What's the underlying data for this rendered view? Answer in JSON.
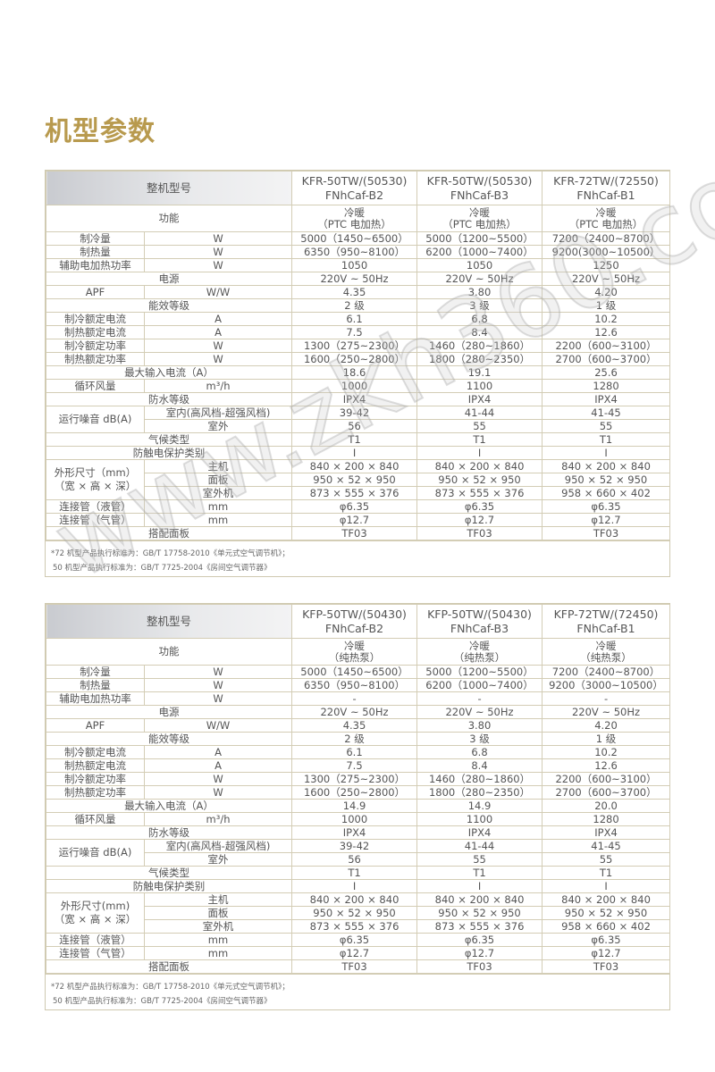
{
  "page_title": "机型参数",
  "watermark": "www.zkh360.com",
  "colors": {
    "title": "#b89a4e",
    "header_bg": "#c9cbd0",
    "border": "#d3cdb5"
  },
  "tables": [
    {
      "header_label": "整机型号",
      "models": [
        "KFR-50TW/(50530)|FNhCaf-B2",
        "KFR-50TW/(50530)|FNhCaf-B3",
        "KFR-72TW/(72550)|FNhCaf-B1"
      ],
      "function_label": "功能",
      "function_values": [
        "冷暖|（PTC 电加热）",
        "冷暖|（PTC 电加热）",
        "冷暖|（PTC 电加热）"
      ],
      "rows": [
        {
          "label": "制冷量",
          "unit": "W",
          "values": [
            "5000（1450~6500）",
            "5000（1200~5500）",
            "7200（2400~8700）"
          ]
        },
        {
          "label": "制热量",
          "unit": "W",
          "values": [
            "6350（950~8100）",
            "6200（1000~7400）",
            "9200(3000~10500）"
          ]
        },
        {
          "label": "辅助电加热功率",
          "unit": "W",
          "values": [
            "1050",
            "1050",
            "1250"
          ]
        },
        {
          "label": "电源",
          "values": [
            "220V ~ 50Hz",
            "220V ~ 50Hz",
            "220V ~ 50Hz"
          ]
        },
        {
          "label": "APF",
          "unit": "W/W",
          "values": [
            "4.35",
            "3.80",
            "4.20"
          ]
        },
        {
          "label": "能效等级",
          "values": [
            "2 级",
            "3 级",
            "1 级"
          ]
        },
        {
          "label": "制冷额定电流",
          "unit": "A",
          "values": [
            "6.1",
            "6.8",
            "10.2"
          ]
        },
        {
          "label": "制热额定电流",
          "unit": "A",
          "values": [
            "7.5",
            "8.4",
            "12.6"
          ]
        },
        {
          "label": "制冷额定功率",
          "unit": "W",
          "values": [
            "1300（275~2300）",
            "1460（280~1860）",
            "2200（600~3100）"
          ]
        },
        {
          "label": "制热额定功率",
          "unit": "W",
          "values": [
            "1600（250~2800）",
            "1800（280~2350）",
            "2700（600~3700）"
          ]
        },
        {
          "label": "最大输入电流（A）",
          "values": [
            "18.6",
            "19.1",
            "25.6"
          ]
        },
        {
          "label": "循环风量",
          "unit": "m³/h",
          "values": [
            "1000",
            "1100",
            "1280"
          ]
        },
        {
          "label": "防水等级",
          "values": [
            "IPX4",
            "IPX4",
            "IPX4"
          ]
        },
        {
          "group": "运行噪音 dB(A)",
          "rows": [
            {
              "label": "室内(高风档-超强风档)",
              "values": [
                "39-42",
                "41-44",
                "41-45"
              ]
            },
            {
              "label": "室外",
              "values": [
                "56",
                "55",
                "55"
              ]
            }
          ]
        },
        {
          "label": "气候类型",
          "values": [
            "T1",
            "T1",
            "T1"
          ]
        },
        {
          "label": "防触电保护类别",
          "values": [
            "I",
            "I",
            "I"
          ]
        },
        {
          "group": "外形尺寸（mm）|（宽 × 高 × 深）",
          "rows": [
            {
              "label": "主机",
              "values": [
                "840 × 200 × 840",
                "840 × 200 × 840",
                "840 × 200 × 840"
              ]
            },
            {
              "label": "面板",
              "values": [
                "950 × 52 × 950",
                "950 × 52 × 950",
                "950 × 52 × 950"
              ]
            },
            {
              "label": "室外机",
              "values": [
                "873 × 555 × 376",
                "873 × 555 × 376",
                "958 × 660 × 402"
              ]
            }
          ]
        },
        {
          "label": "连接管（液管）",
          "unit": "mm",
          "values": [
            "φ6.35",
            "φ6.35",
            "φ6.35"
          ]
        },
        {
          "label": "连接管（气管）",
          "unit": "mm",
          "values": [
            "φ12.7",
            "φ12.7",
            "φ12.7"
          ]
        },
        {
          "label": "搭配面板",
          "values": [
            "TF03",
            "TF03",
            "TF03"
          ]
        }
      ],
      "notes": [
        "*72 机型产品执行标准为：GB/T 17758-2010《单元式空气调节机》；",
        "50 机型产品执行标准为：GB/T 7725-2004《房间空气调节器》"
      ]
    },
    {
      "header_label": "整机型号",
      "models": [
        "KFP-50TW/(50430)|FNhCaf-B2",
        "KFP-50TW/(50430)|FNhCaf-B3",
        "KFP-72TW/(72450)|FNhCaf-B1"
      ],
      "function_label": "功能",
      "function_values": [
        "冷暖|（纯热泵）",
        "冷暖|（纯热泵）",
        "冷暖|（纯热泵）"
      ],
      "rows": [
        {
          "label": "制冷量",
          "unit": "W",
          "values": [
            "5000（1450~6500）",
            "5000（1200~5500）",
            "7200（2400~8700）"
          ]
        },
        {
          "label": "制热量",
          "unit": "W",
          "values": [
            "6350（950~8100）",
            "6200（1000~7400）",
            "9200（3000~10500）"
          ]
        },
        {
          "label": "辅助电加热功率",
          "unit": "W",
          "values": [
            "-",
            "-",
            "-"
          ]
        },
        {
          "label": "电源",
          "values": [
            "220V ~ 50Hz",
            "220V ~ 50Hz",
            "220V ~ 50Hz"
          ]
        },
        {
          "label": "APF",
          "unit": "W/W",
          "values": [
            "4.35",
            "3.80",
            "4.20"
          ]
        },
        {
          "label": "能效等级",
          "values": [
            "2 级",
            "3 级",
            "1 级"
          ]
        },
        {
          "label": "制冷额定电流",
          "unit": "A",
          "values": [
            "6.1",
            "6.8",
            "10.2"
          ]
        },
        {
          "label": "制热额定电流",
          "unit": "A",
          "values": [
            "7.5",
            "8.4",
            "12.6"
          ]
        },
        {
          "label": "制冷额定功率",
          "unit": "W",
          "values": [
            "1300（275~2300）",
            "1460（280~1860）",
            "2200（600~3100）"
          ]
        },
        {
          "label": "制热额定功率",
          "unit": "W",
          "values": [
            "1600（250~2800）",
            "1800（280~2350）",
            "2700（600~3700）"
          ]
        },
        {
          "label": "最大输入电流（A）",
          "values": [
            "14.9",
            "14.9",
            "20.0"
          ]
        },
        {
          "label": "循环风量",
          "unit": "m³/h",
          "values": [
            "1000",
            "1100",
            "1280"
          ]
        },
        {
          "label": "防水等级",
          "values": [
            "IPX4",
            "IPX4",
            "IPX4"
          ]
        },
        {
          "group": "运行噪音 dB(A)",
          "rows": [
            {
              "label": "室内(高风档-超强风档)",
              "values": [
                "39-42",
                "41-44",
                "41-45"
              ]
            },
            {
              "label": "室外",
              "values": [
                "56",
                "55",
                "55"
              ]
            }
          ]
        },
        {
          "label": "气候类型",
          "values": [
            "T1",
            "T1",
            "T1"
          ]
        },
        {
          "label": "防触电保护类别",
          "values": [
            "I",
            "I",
            "I"
          ]
        },
        {
          "group": "外形尺寸(mm)|（宽 × 高 × 深）",
          "rows": [
            {
              "label": "主机",
              "values": [
                "840 × 200 × 840",
                "840 × 200 × 840",
                "840 × 200 × 840"
              ]
            },
            {
              "label": "面板",
              "values": [
                "950 × 52 × 950",
                "950 × 52 × 950",
                "950 × 52 × 950"
              ]
            },
            {
              "label": "室外机",
              "values": [
                "873 × 555 × 376",
                "873 × 555 × 376",
                "958 × 660 × 402"
              ]
            }
          ]
        },
        {
          "label": "连接管（液管）",
          "unit": "mm",
          "values": [
            "φ6.35",
            "φ6.35",
            "φ6.35"
          ]
        },
        {
          "label": "连接管（气管）",
          "unit": "mm",
          "values": [
            "φ12.7",
            "φ12.7",
            "φ12.7"
          ]
        },
        {
          "label": "搭配面板",
          "values": [
            "TF03",
            "TF03",
            "TF03"
          ]
        }
      ],
      "notes": [
        "*72 机型产品执行标准为：GB/T 17758-2010《单元式空气调节机》；",
        "50 机型产品执行标准为：GB/T 7725-2004《房间空气调节器》"
      ]
    }
  ]
}
